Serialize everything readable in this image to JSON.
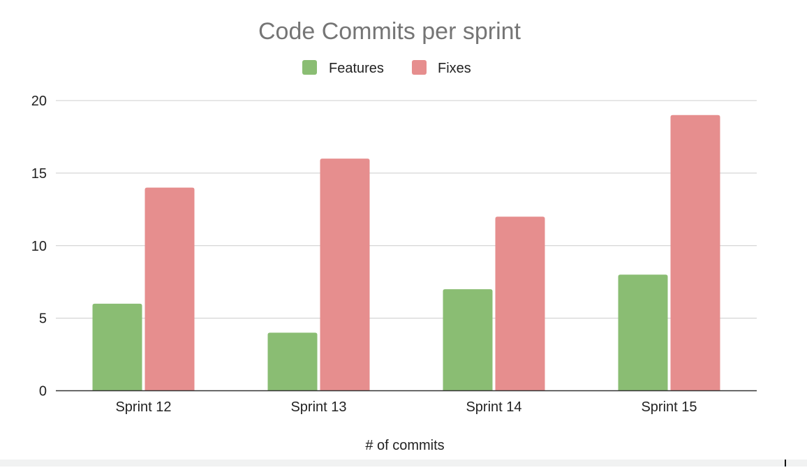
{
  "colors": {
    "features": "#8abd73",
    "fixes": "#e68e8e",
    "grid": "#cccccc",
    "axis": "#333333",
    "title": "#757575",
    "text": "#222222"
  },
  "chart_data": {
    "type": "bar",
    "title": "Code Commits per sprint",
    "xlabel": "# of commits",
    "ylabel": "",
    "categories": [
      "Sprint 12",
      "Sprint 13",
      "Sprint 14",
      "Sprint 15"
    ],
    "series": [
      {
        "name": "Features",
        "values": [
          6,
          4,
          7,
          8
        ]
      },
      {
        "name": "Fixes",
        "values": [
          14,
          16,
          12,
          19
        ]
      }
    ],
    "ylim": [
      0,
      20
    ],
    "yticks": [
      0,
      5,
      10,
      15,
      20
    ],
    "grid": true,
    "legend_position": "top-center"
  }
}
